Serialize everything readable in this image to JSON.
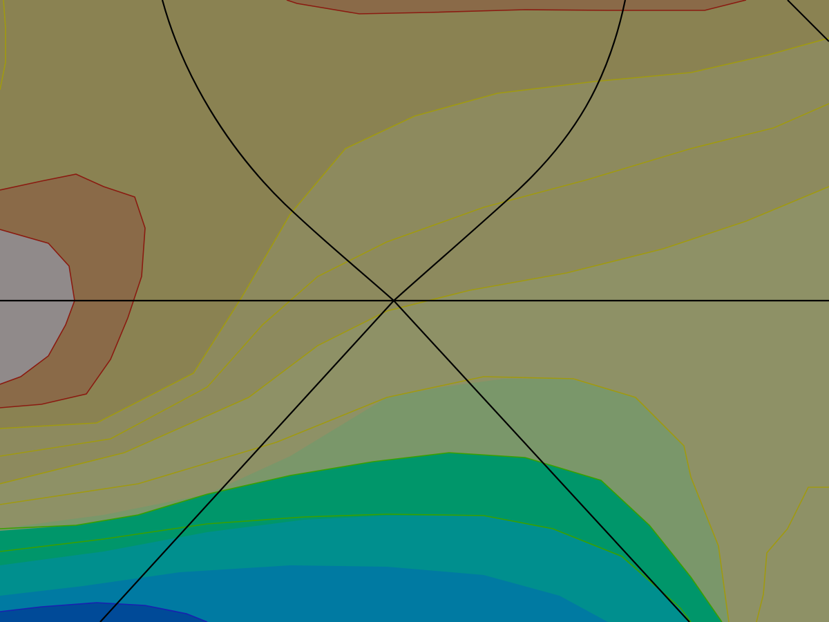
{
  "map": {
    "kind": "filled contour map with graticule overlay",
    "bands": [
      {
        "name": "terrain-high-grey",
        "fill": "#908a8a"
      },
      {
        "name": "terrain-brown",
        "fill": "#8a6a48"
      },
      {
        "name": "terrain-olive-dark",
        "fill": "#8a8252"
      },
      {
        "name": "terrain-olive",
        "fill": "#8d8a5e"
      },
      {
        "name": "terrain-olive-light",
        "fill": "#8e9166"
      },
      {
        "name": "terrain-sage",
        "fill": "#7a976a"
      },
      {
        "name": "water-green",
        "fill": "#00966a"
      },
      {
        "name": "water-teal",
        "fill": "#008f8e"
      },
      {
        "name": "water-blue",
        "fill": "#007aa2"
      },
      {
        "name": "water-deep-blue",
        "fill": "#004a98"
      }
    ],
    "contour_colors": {
      "brown": "#8a1a10",
      "olive": "#a09a10",
      "green": "#3aa000",
      "blue": "#1a20b0"
    },
    "graticule_color": "#000000"
  }
}
